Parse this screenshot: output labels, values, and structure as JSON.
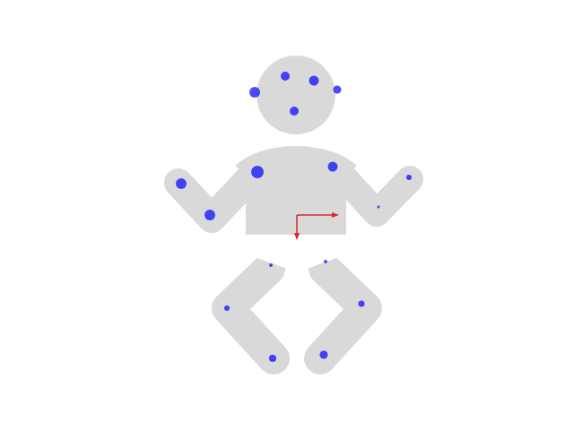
{
  "chart_data": {
    "type": "scatter",
    "x": [
      -47,
      -13,
      19,
      45,
      -3,
      -44,
      40,
      -129,
      -97,
      125,
      91,
      -29,
      32,
      -78,
      72,
      -27,
      30
    ],
    "y": [
      137,
      155,
      150,
      140,
      116,
      48,
      54,
      35,
      0,
      42,
      9,
      -56,
      -52,
      -104,
      -99,
      -160,
      -156
    ],
    "sizes": [
      12,
      10,
      11,
      9,
      10,
      14,
      11,
      12,
      12,
      6,
      3,
      4,
      4,
      6,
      7,
      8,
      9
    ],
    "color": "#0000ff",
    "marker": "circle",
    "xlim": [
      -331,
      309
    ],
    "ylim": [
      -240,
      240
    ],
    "grid": false,
    "tick_labels": false
  }
}
